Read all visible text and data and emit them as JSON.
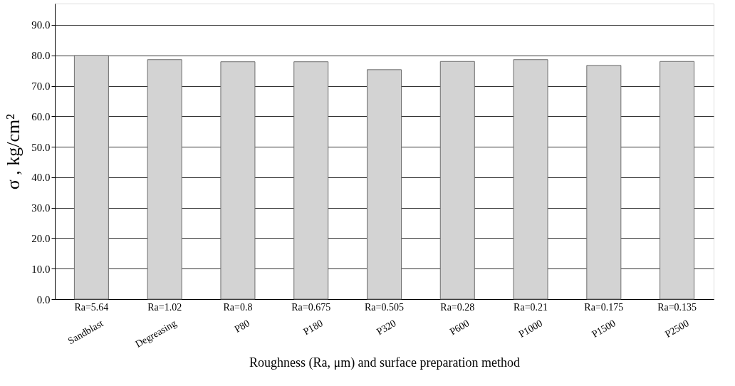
{
  "chart_data": {
    "type": "bar",
    "xlabel": "Roughness (Ra, μm) and surface preparation method",
    "ylabel": "σ , kg/cm²",
    "categories": [
      "Ra=5.64",
      "Ra=1.02",
      "Ra=0.8",
      "Ra=0.675",
      "Ra=0.505",
      "Ra=0.28",
      "Ra=0.21",
      "Ra=0.175",
      "Ra=0.135"
    ],
    "values": [
      80.0,
      78.6,
      77.9,
      77.9,
      75.3,
      78.0,
      78.6,
      76.7,
      78.0
    ],
    "color": "#d3d3d3",
    "ylim": [
      0,
      97
    ],
    "yticks": [
      {
        "value": 0,
        "label": "0.0"
      },
      {
        "value": 10,
        "label": "10.0"
      },
      {
        "value": 20,
        "label": "20.0"
      },
      {
        "value": 30,
        "label": "30.0"
      },
      {
        "value": 40,
        "label": "40.0"
      },
      {
        "value": 50,
        "label": "50.0"
      },
      {
        "value": 60,
        "label": "60.0"
      },
      {
        "value": 70,
        "label": "70.0"
      },
      {
        "value": 80,
        "label": "80.0"
      },
      {
        "value": 90,
        "label": "90.0"
      }
    ],
    "grid": "y",
    "annotations": [
      "Sandblast",
      "Degreasing",
      "P80",
      "P180",
      "P320",
      "P600",
      "P1000",
      "P1500",
      "P2500"
    ]
  }
}
